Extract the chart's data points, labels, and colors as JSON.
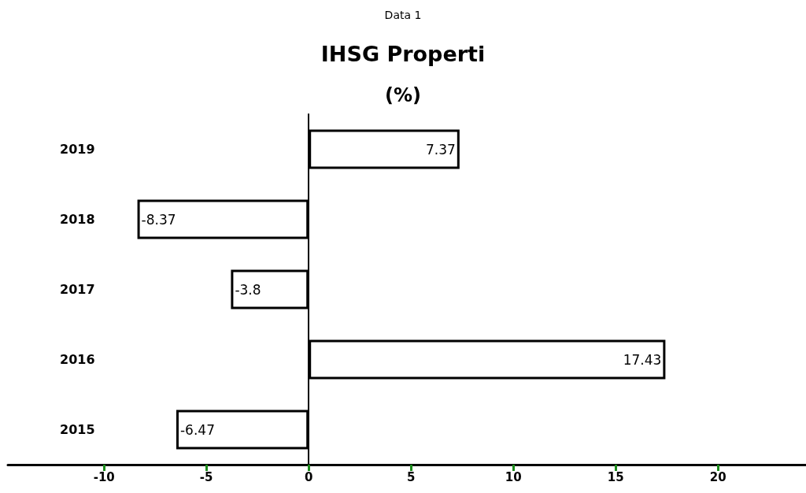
{
  "chart_data": {
    "type": "bar",
    "orientation": "horizontal",
    "title": "IHSG Properti",
    "subtitle": "(%)",
    "annotations": [
      "Data 1"
    ],
    "categories": [
      "2019",
      "2018",
      "2017",
      "2016",
      "2015"
    ],
    "values": [
      7.37,
      -8.37,
      -3.8,
      17.43,
      -6.47
    ],
    "color": "#ffffff",
    "xlim": [
      -14.7,
      24.3
    ],
    "xticks": [
      -10,
      -5,
      0,
      5,
      10,
      15,
      20
    ],
    "data_labels": true
  }
}
